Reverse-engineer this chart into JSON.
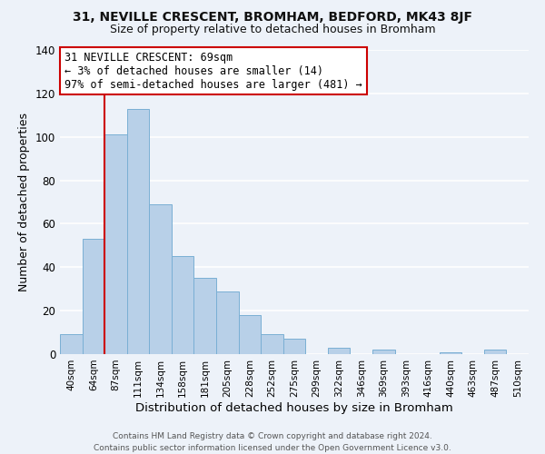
{
  "title": "31, NEVILLE CRESCENT, BROMHAM, BEDFORD, MK43 8JF",
  "subtitle": "Size of property relative to detached houses in Bromham",
  "xlabel": "Distribution of detached houses by size in Bromham",
  "ylabel": "Number of detached properties",
  "bar_labels": [
    "40sqm",
    "64sqm",
    "87sqm",
    "111sqm",
    "134sqm",
    "158sqm",
    "181sqm",
    "205sqm",
    "228sqm",
    "252sqm",
    "275sqm",
    "299sqm",
    "322sqm",
    "346sqm",
    "369sqm",
    "393sqm",
    "416sqm",
    "440sqm",
    "463sqm",
    "487sqm",
    "510sqm"
  ],
  "bar_values": [
    9,
    53,
    101,
    113,
    69,
    45,
    35,
    29,
    18,
    9,
    7,
    0,
    3,
    0,
    2,
    0,
    0,
    1,
    0,
    2,
    0
  ],
  "bar_color": "#b8d0e8",
  "bar_edge_color": "#7aafd4",
  "vline_x": 1.5,
  "vline_color": "#cc0000",
  "ylim": [
    0,
    140
  ],
  "yticks": [
    0,
    20,
    40,
    60,
    80,
    100,
    120,
    140
  ],
  "annotation_title": "31 NEVILLE CRESCENT: 69sqm",
  "annotation_line1": "← 3% of detached houses are smaller (14)",
  "annotation_line2": "97% of semi-detached houses are larger (481) →",
  "annotation_box_color": "#ffffff",
  "annotation_box_edgecolor": "#cc0000",
  "footer_line1": "Contains HM Land Registry data © Crown copyright and database right 2024.",
  "footer_line2": "Contains public sector information licensed under the Open Government Licence v3.0.",
  "background_color": "#edf2f9"
}
